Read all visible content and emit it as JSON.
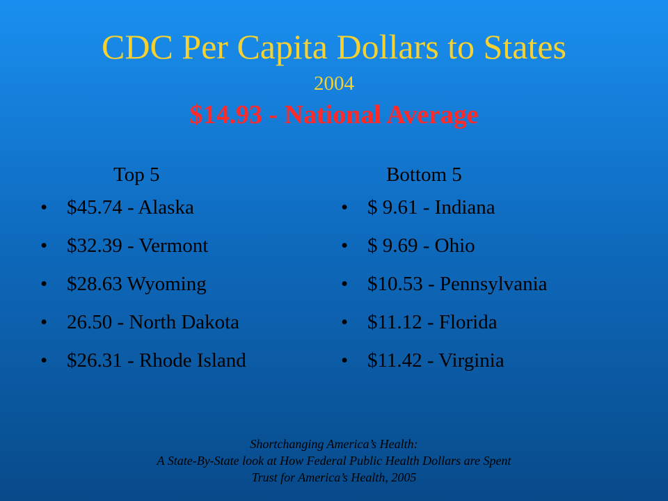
{
  "header": {
    "title": "CDC Per Capita Dollars to States",
    "year": "2004",
    "subtitle": "$14.93 - National Average"
  },
  "columns": [
    {
      "heading": "Top 5",
      "items": [
        "$45.74 - Alaska",
        "$32.39 - Vermont",
        "$28.63 Wyoming",
        "26.50 - North Dakota",
        "$26.31 - Rhode Island"
      ]
    },
    {
      "heading": "Bottom 5",
      "items": [
        "$ 9.61 - Indiana",
        "$ 9.69 - Ohio",
        "$10.53 - Pennsylvania",
        "$11.12 - Florida",
        "$11.42 - Virginia"
      ]
    }
  ],
  "source": [
    "Shortchanging America’s Health:",
    "A State-By-State look at How Federal Public Health Dollars are Spent",
    "Trust for America’s Health, 2005"
  ]
}
